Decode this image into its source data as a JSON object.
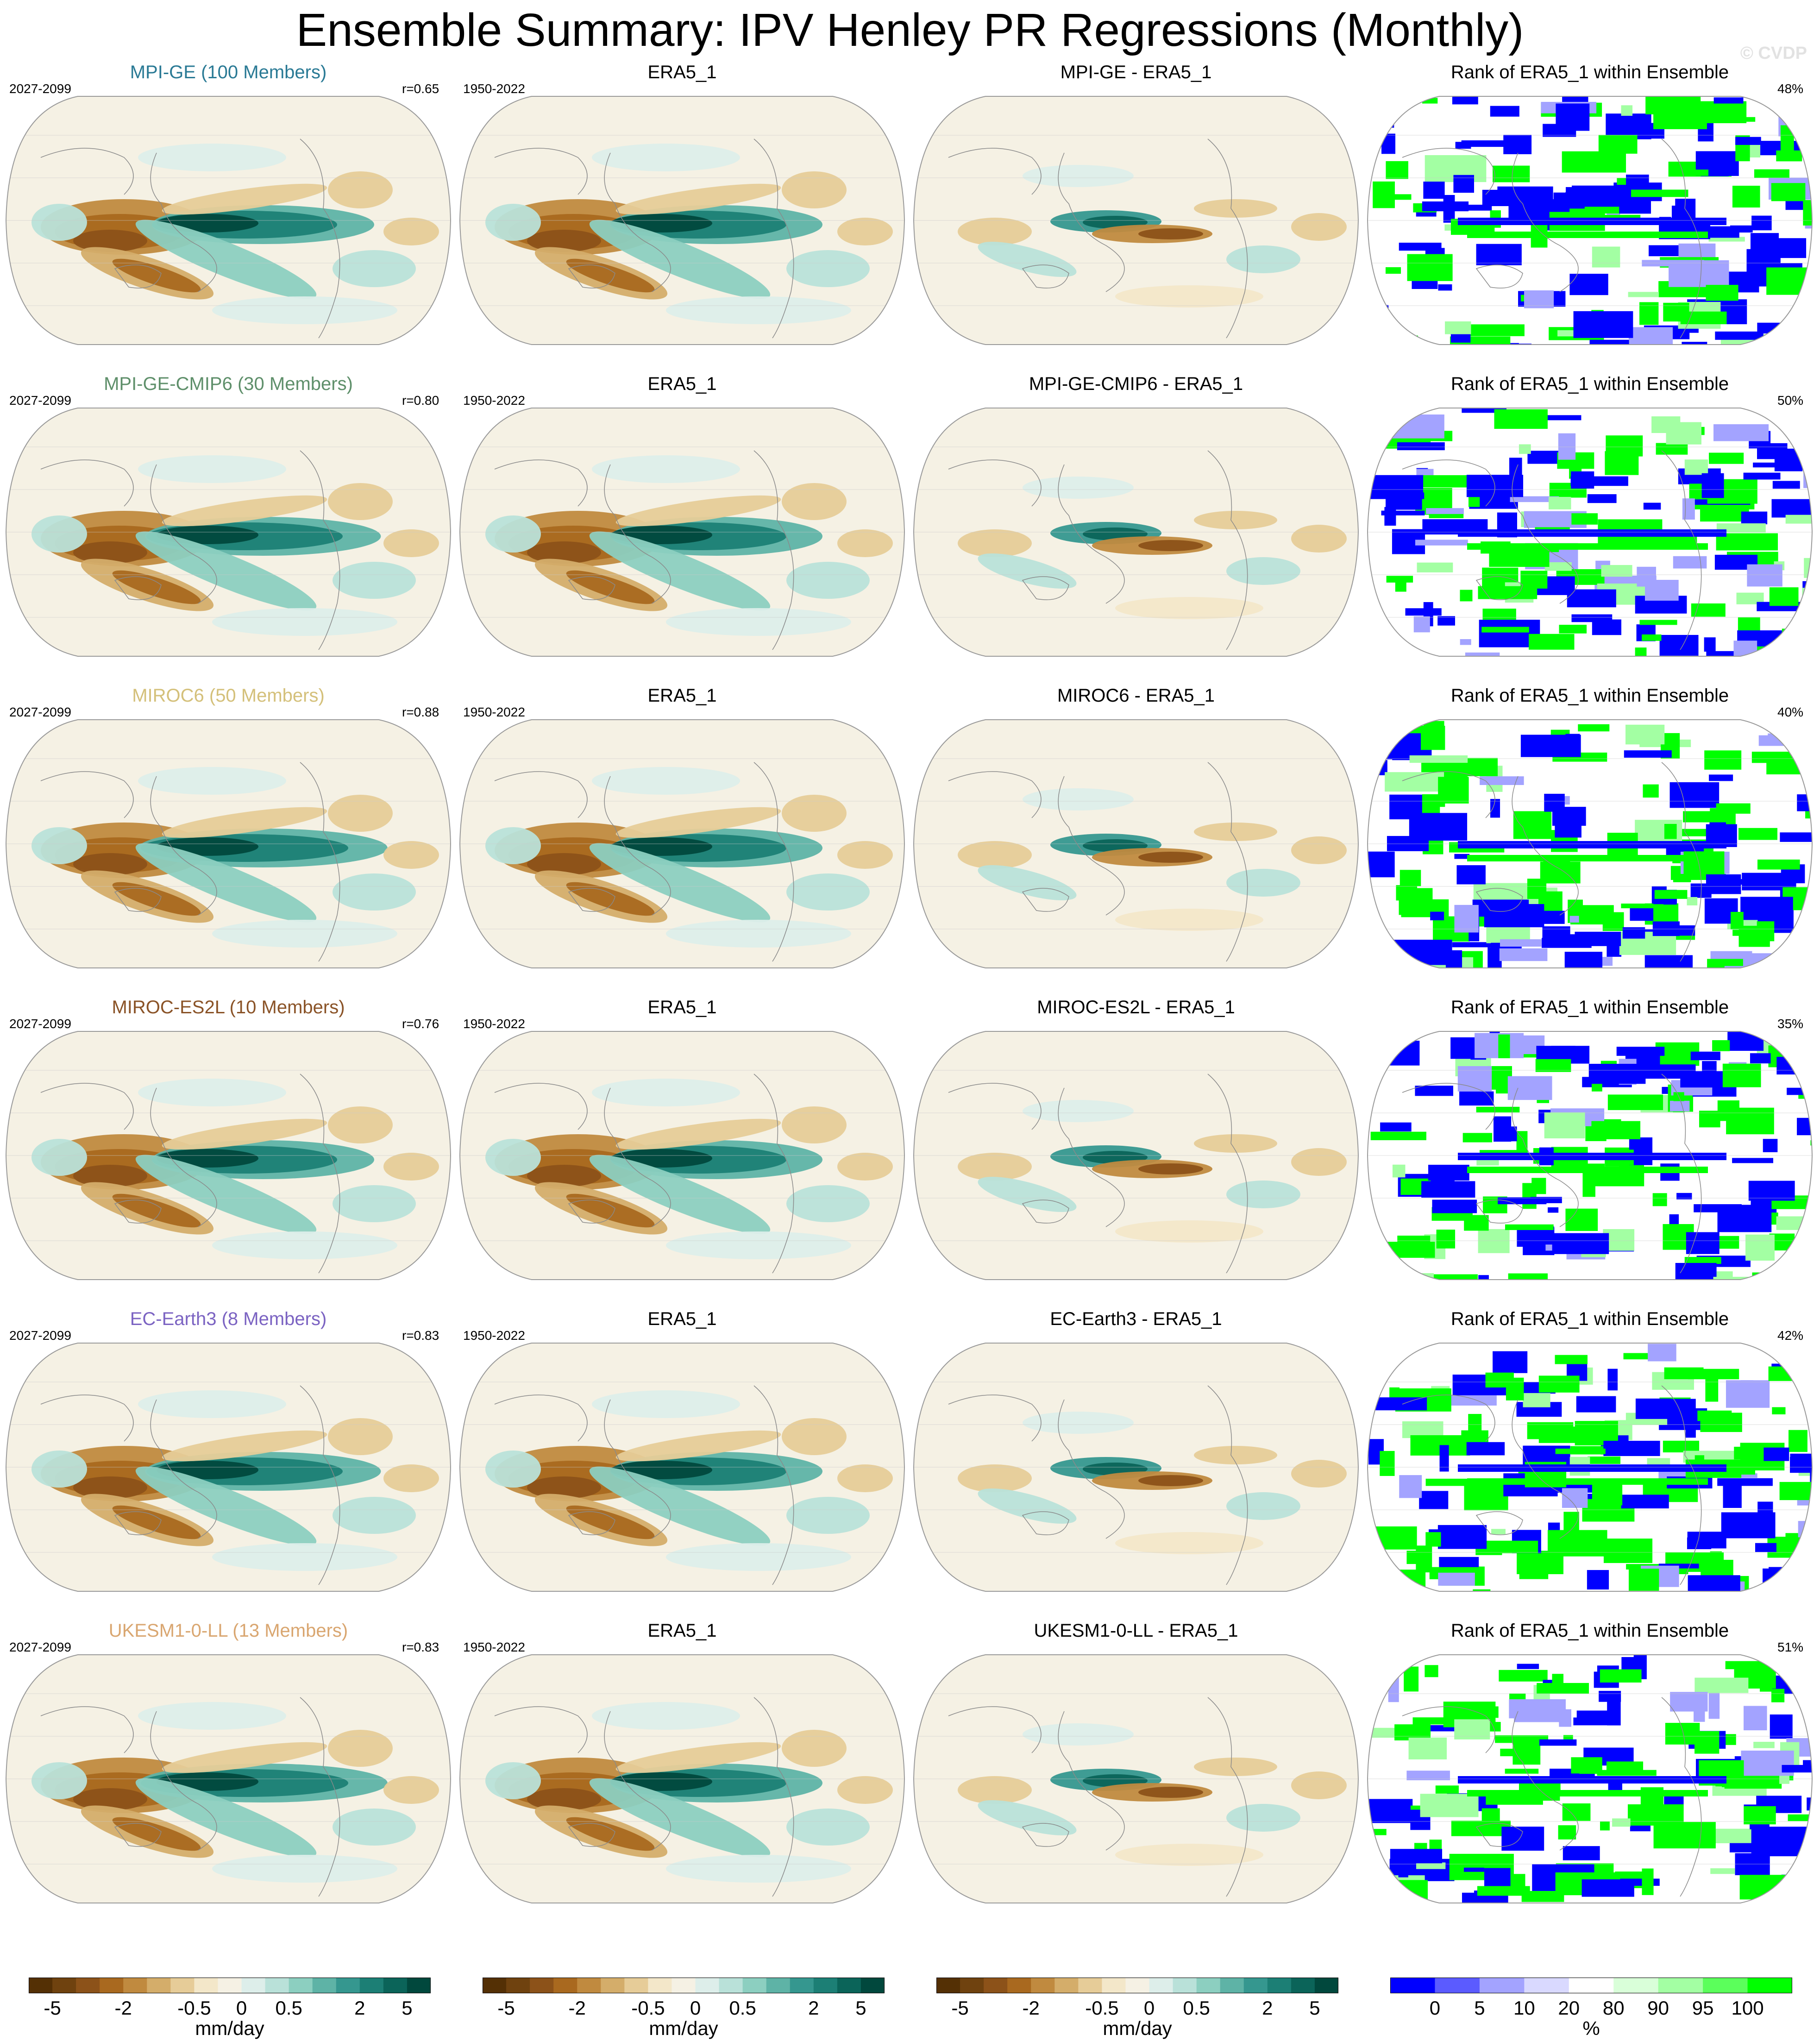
{
  "title": "Ensemble Summary: IPV Henley PR Regressions (Monthly)",
  "copyright": "© CVDP",
  "rows": [
    {
      "model": "MPI-GE (100 Members)",
      "color": "#2a7a95",
      "model_years": "2027-2099",
      "r": "r=0.65",
      "obs": "ERA5_1",
      "obs_years": "1950-2022",
      "diff": "MPI-GE - ERA5_1",
      "rank_title": "Rank of ERA5_1 within Ensemble",
      "rank_pct": "48%"
    },
    {
      "model": "MPI-GE-CMIP6 (30 Members)",
      "color": "#5e8f6a",
      "model_years": "2027-2099",
      "r": "r=0.80",
      "obs": "ERA5_1",
      "obs_years": "1950-2022",
      "diff": "MPI-GE-CMIP6 - ERA5_1",
      "rank_title": "Rank of ERA5_1 within Ensemble",
      "rank_pct": "50%"
    },
    {
      "model": "MIROC6 (50 Members)",
      "color": "#d4c07a",
      "model_years": "2027-2099",
      "r": "r=0.88",
      "obs": "ERA5_1",
      "obs_years": "1950-2022",
      "diff": "MIROC6 - ERA5_1",
      "rank_title": "Rank of ERA5_1 within Ensemble",
      "rank_pct": "40%"
    },
    {
      "model": "MIROC-ES2L (10 Members)",
      "color": "#8a5327",
      "model_years": "2027-2099",
      "r": "r=0.76",
      "obs": "ERA5_1",
      "obs_years": "1950-2022",
      "diff": "MIROC-ES2L - ERA5_1",
      "rank_title": "Rank of ERA5_1 within Ensemble",
      "rank_pct": "35%"
    },
    {
      "model": "EC-Earth3 (8 Members)",
      "color": "#7b63c2",
      "model_years": "2027-2099",
      "r": "r=0.83",
      "obs": "ERA5_1",
      "obs_years": "1950-2022",
      "diff": "EC-Earth3 - ERA5_1",
      "rank_title": "Rank of ERA5_1 within Ensemble",
      "rank_pct": "42%"
    },
    {
      "model": "UKESM1-0-LL (13 Members)",
      "color": "#d9a670",
      "model_years": "2027-2099",
      "r": "r=0.83",
      "obs": "ERA5_1",
      "obs_years": "1950-2022",
      "diff": "UKESM1-0-LL - ERA5_1",
      "rank_title": "Rank of ERA5_1 within Ensemble",
      "rank_pct": "51%"
    }
  ],
  "colorbars": [
    {
      "unit": "mm/day",
      "ticks": [
        "-5",
        "-2",
        "-0.5",
        "0",
        "0.5",
        "2",
        "5"
      ]
    },
    {
      "unit": "mm/day",
      "ticks": [
        "-5",
        "-2",
        "-0.5",
        "0",
        "0.5",
        "2",
        "5"
      ]
    },
    {
      "unit": "mm/day",
      "ticks": [
        "-5",
        "-2",
        "-0.5",
        "0",
        "0.5",
        "2",
        "5"
      ]
    },
    {
      "unit": "%",
      "ticks": [
        "0",
        "5",
        "10",
        "20",
        "80",
        "90",
        "95",
        "100"
      ]
    }
  ],
  "chart_data": {
    "type": "heatmap",
    "title": "Ensemble Summary: IPV Henley PR Regressions (Monthly)",
    "projection": "robinson-like global map",
    "regression_units": "mm/day",
    "regression_levels": [
      -5,
      -4,
      -3,
      -2,
      -1.5,
      -1,
      -0.5,
      -0.25,
      0,
      0.25,
      0.5,
      1,
      1.5,
      2,
      3,
      4,
      5
    ],
    "regression_colors": [
      "#543005",
      "#6f420f",
      "#8c5219",
      "#a9691f",
      "#c08a3f",
      "#d4ad6a",
      "#e6cc98",
      "#f3e7c9",
      "#f5f1e4",
      "#ddeeea",
      "#b9e1d9",
      "#8ccfc0",
      "#5eb3a6",
      "#35978f",
      "#1c7f75",
      "#0b6459",
      "#01483d"
    ],
    "rank_units": "%",
    "rank_levels": [
      0,
      5,
      10,
      20,
      80,
      90,
      95,
      100
    ],
    "rank_colors": [
      "#0000ff",
      "#5b5bff",
      "#a3a3ff",
      "#d9d9ff",
      "#ffffff",
      "#d9ffd9",
      "#a3ffa3",
      "#5bff5b",
      "#00ff00"
    ],
    "columns": [
      "model ensemble mean",
      "ERA5_1",
      "model minus ERA5_1",
      "rank of ERA5_1 within ensemble"
    ],
    "pattern_correlations": [
      0.65,
      0.8,
      0.88,
      0.76,
      0.83,
      0.83
    ],
    "rank_percent": [
      48,
      50,
      40,
      35,
      42,
      51
    ]
  }
}
